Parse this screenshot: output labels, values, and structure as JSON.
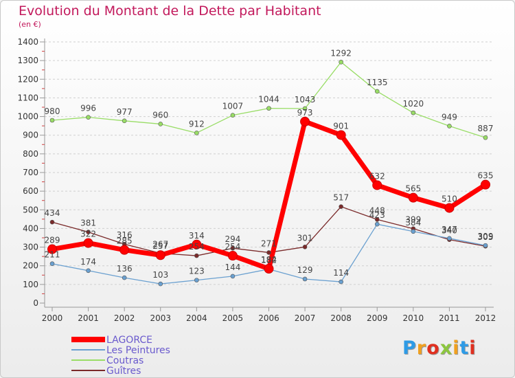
{
  "header": {
    "title": "Evolution du Montant de la Dette par Habitant",
    "subtitle": "(en €)"
  },
  "logo": {
    "text": "Proxiti",
    "letter_colors": [
      "#2e9be6",
      "#f0a020",
      "#e03020",
      "#8cc63f",
      "#f0a020",
      "#2e9be6",
      "#e03020"
    ]
  },
  "chart_data": {
    "type": "line",
    "title": "Evolution du Montant de la Dette par Habitant",
    "subtitle": "(en €)",
    "xlabel": "",
    "ylabel": "",
    "x": [
      "2000",
      "2001",
      "2002",
      "2003",
      "2004",
      "2005",
      "2006",
      "2007",
      "2008",
      "2009",
      "2010",
      "2011",
      "2012"
    ],
    "ylim": [
      0,
      1400
    ],
    "yticks": [
      0,
      100,
      200,
      300,
      400,
      500,
      600,
      700,
      800,
      900,
      1000,
      1100,
      1200,
      1300,
      1400
    ],
    "grid": "horizontal dashed",
    "legend_position": "bottom-left",
    "series": [
      {
        "name": "LAGORCE",
        "color": "#ff0000",
        "values": [
          289,
          322,
          285,
          257,
          314,
          254,
          184,
          973,
          901,
          632,
          565,
          510,
          635
        ],
        "labels": [
          "289",
          "322",
          "285",
          "257",
          "314",
          "254",
          "184",
          "973",
          "901",
          "632",
          "565",
          "510",
          "635"
        ]
      },
      {
        "name": "Les Peintures",
        "color": "#6aa0d0",
        "values": [
          211,
          174,
          136,
          103,
          123,
          144,
          182,
          129,
          114,
          423,
          384,
          347,
          309
        ],
        "labels": [
          "211",
          "174",
          "136",
          "103",
          "123",
          "144",
          "182",
          "129",
          "114",
          "423",
          "384",
          "347",
          "309"
        ]
      },
      {
        "name": "Coutras",
        "color": "#99dd66",
        "values": [
          980,
          996,
          977,
          960,
          912,
          1007,
          1044,
          1043,
          1292,
          1135,
          1020,
          949,
          887
        ],
        "labels": [
          "980",
          "996",
          "977",
          "960",
          "912",
          "1007",
          "1044",
          "1043",
          "1292",
          "1135",
          "1020",
          "949",
          "887"
        ]
      },
      {
        "name": "Guîtres",
        "color": "#7a2a2a",
        "values": [
          434,
          381,
          316,
          267,
          254,
          294,
          271,
          301,
          517,
          448,
          399,
          340,
          305
        ],
        "labels": [
          "434",
          "381",
          "316",
          "267",
          "254",
          "294",
          "271",
          "301",
          "517",
          "448",
          "399",
          "340",
          "305"
        ]
      }
    ]
  }
}
